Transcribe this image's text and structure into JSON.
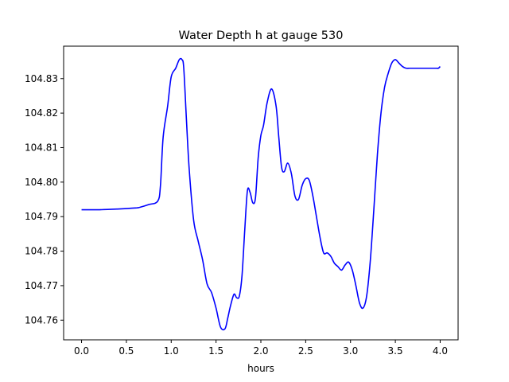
{
  "chart_data": {
    "type": "line",
    "title": "Water Depth h at gauge 530",
    "xlabel": "hours",
    "ylabel": "",
    "xlim": [
      -0.2,
      4.2
    ],
    "ylim": [
      104.7543,
      104.8394
    ],
    "xticks": [
      0.0,
      0.5,
      1.0,
      1.5,
      2.0,
      2.5,
      3.0,
      3.5,
      4.0
    ],
    "xtick_labels": [
      "0.0",
      "0.5",
      "1.0",
      "1.5",
      "2.0",
      "2.5",
      "3.0",
      "3.5",
      "4.0"
    ],
    "yticks": [
      104.76,
      104.77,
      104.78,
      104.79,
      104.8,
      104.81,
      104.82,
      104.83
    ],
    "ytick_labels": [
      "104.76",
      "104.77",
      "104.78",
      "104.79",
      "104.80",
      "104.81",
      "104.82",
      "104.83"
    ],
    "grid": false,
    "series": [
      {
        "color": "#0000ff",
        "x": [
          0.0,
          0.2,
          0.4,
          0.6,
          0.65,
          0.75,
          0.85,
          0.88,
          0.91,
          0.96,
          1.0,
          1.05,
          1.09,
          1.12,
          1.14,
          1.17,
          1.2,
          1.25,
          1.3,
          1.35,
          1.4,
          1.45,
          1.5,
          1.55,
          1.6,
          1.63,
          1.66,
          1.7,
          1.73,
          1.76,
          1.79,
          1.82,
          1.85,
          1.88,
          1.91,
          1.94,
          1.97,
          2.0,
          2.03,
          2.07,
          2.12,
          2.17,
          2.2,
          2.23,
          2.26,
          2.3,
          2.34,
          2.38,
          2.42,
          2.46,
          2.5,
          2.54,
          2.58,
          2.62,
          2.66,
          2.7,
          2.74,
          2.78,
          2.82,
          2.86,
          2.9,
          2.94,
          2.98,
          3.02,
          3.06,
          3.1,
          3.14,
          3.18,
          3.22,
          3.26,
          3.3,
          3.34,
          3.38,
          3.42,
          3.46,
          3.5,
          3.54,
          3.58,
          3.62,
          3.66,
          3.7,
          3.74,
          3.78,
          3.82,
          3.86,
          3.9,
          3.93,
          3.96,
          3.98,
          4.0
        ],
        "y": [
          104.792,
          104.792,
          104.7922,
          104.7925,
          104.7927,
          104.7935,
          104.7945,
          104.799,
          104.813,
          104.822,
          104.8305,
          104.833,
          104.8355,
          104.8355,
          104.833,
          104.818,
          104.804,
          104.789,
          104.783,
          104.7775,
          104.7705,
          104.768,
          104.7635,
          104.758,
          104.7575,
          104.7605,
          104.764,
          104.7675,
          104.7665,
          104.767,
          104.773,
          104.786,
          104.7975,
          104.797,
          104.794,
          104.7955,
          104.807,
          104.8135,
          104.8165,
          104.823,
          104.827,
          104.822,
          104.813,
          104.8045,
          104.803,
          104.8055,
          104.8025,
          104.796,
          104.795,
          104.799,
          104.801,
          104.8005,
          104.796,
          104.79,
          104.784,
          104.7795,
          104.7795,
          104.7785,
          104.7765,
          104.7755,
          104.7745,
          104.776,
          104.7768,
          104.7745,
          104.77,
          104.765,
          104.7635,
          104.767,
          104.777,
          104.792,
          104.808,
          104.82,
          104.8275,
          104.8315,
          104.8345,
          104.8355,
          104.8345,
          104.8335,
          104.833,
          104.833,
          104.833,
          104.833,
          104.833,
          104.833,
          104.833,
          104.833,
          104.833,
          104.833,
          104.833,
          104.8335
        ]
      }
    ]
  }
}
